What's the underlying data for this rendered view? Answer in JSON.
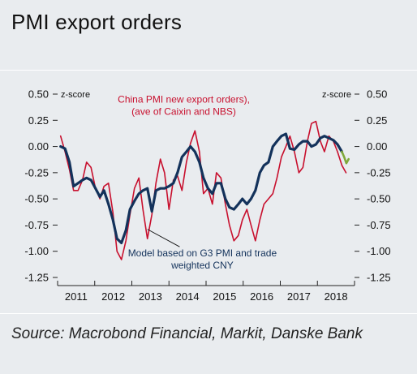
{
  "title": "PMI export orders",
  "source": "Source: Macrobond Financial, Markit, Danske Bank",
  "colors": {
    "red": "#c8102e",
    "navy": "#13325b",
    "green": "#7fa83a",
    "axis": "#222222"
  },
  "chart_data": {
    "type": "line",
    "y_left_label": "z-score",
    "y_right_label": "z-score",
    "ylim": [
      -1.25,
      0.5
    ],
    "yticks": [
      0.5,
      0.25,
      0.0,
      -0.25,
      -0.5,
      -0.75,
      -1.0,
      -1.25
    ],
    "ytick_labels": [
      "0.50",
      "0.25",
      "0.00",
      "-0.25",
      "-0.50",
      "-0.75",
      "-1.00",
      "-1.25"
    ],
    "xlim": [
      2010.5,
      2018.5
    ],
    "x_ticks": [
      2010.5,
      2011.5,
      2012.5,
      2013.5,
      2014.5,
      2015.5,
      2016.5,
      2017.5,
      2018.5
    ],
    "x_labels": [
      {
        "label": "2011",
        "x": 2011.0
      },
      {
        "label": "2012",
        "x": 2012.0
      },
      {
        "label": "2013",
        "x": 2013.0
      },
      {
        "label": "2014",
        "x": 2014.0
      },
      {
        "label": "2015",
        "x": 2015.0
      },
      {
        "label": "2016",
        "x": 2016.0
      },
      {
        "label": "2017",
        "x": 2017.0
      },
      {
        "label": "2018",
        "x": 2018.0
      }
    ],
    "grid": false,
    "series": [
      {
        "name": "China PMI new export orders), (ave of Caixin and NBS)",
        "color": "#c8102e",
        "x": [
          2010.58,
          2010.7,
          2010.82,
          2010.93,
          2011.05,
          2011.17,
          2011.28,
          2011.4,
          2011.52,
          2011.64,
          2011.75,
          2011.87,
          2011.99,
          2012.1,
          2012.22,
          2012.34,
          2012.45,
          2012.57,
          2012.69,
          2012.8,
          2012.92,
          2013.04,
          2013.15,
          2013.27,
          2013.38,
          2013.5,
          2013.62,
          2013.73,
          2013.85,
          2013.97,
          2014.08,
          2014.2,
          2014.32,
          2014.43,
          2014.55,
          2014.67,
          2014.78,
          2014.9,
          2015.02,
          2015.13,
          2015.25,
          2015.37,
          2015.48,
          2015.6,
          2015.71,
          2015.83,
          2015.95,
          2016.06,
          2016.18,
          2016.3,
          2016.41,
          2016.53,
          2016.65,
          2016.76,
          2016.88,
          2017.0,
          2017.11,
          2017.23,
          2017.34,
          2017.46,
          2017.58,
          2017.69,
          2017.81,
          2017.93,
          2018.04,
          2018.16,
          2018.27
        ],
        "y": [
          0.1,
          -0.05,
          -0.22,
          -0.42,
          -0.42,
          -0.32,
          -0.15,
          -0.2,
          -0.4,
          -0.5,
          -0.38,
          -0.35,
          -0.63,
          -1.0,
          -1.08,
          -0.9,
          -0.65,
          -0.4,
          -0.3,
          -0.6,
          -0.88,
          -0.65,
          -0.35,
          -0.12,
          -0.25,
          -0.6,
          -0.32,
          -0.28,
          -0.42,
          -0.15,
          0.03,
          0.15,
          -0.05,
          -0.45,
          -0.4,
          -0.55,
          -0.25,
          -0.3,
          -0.55,
          -0.75,
          -0.9,
          -0.85,
          -0.7,
          -0.6,
          -0.75,
          -0.9,
          -0.7,
          -0.55,
          -0.5,
          -0.45,
          -0.3,
          -0.1,
          0.0,
          0.1,
          -0.05,
          -0.25,
          -0.2,
          0.05,
          0.22,
          0.24,
          0.05,
          -0.05,
          0.1,
          0.05,
          -0.05,
          -0.18,
          -0.25
        ]
      },
      {
        "name": "Model based on G3 PMI and trade weighted CNY",
        "color": "#13325b",
        "x": [
          2010.58,
          2010.7,
          2010.82,
          2010.93,
          2011.05,
          2011.17,
          2011.28,
          2011.4,
          2011.52,
          2011.64,
          2011.75,
          2011.87,
          2011.99,
          2012.1,
          2012.22,
          2012.34,
          2012.45,
          2012.57,
          2012.69,
          2012.8,
          2012.92,
          2013.04,
          2013.15,
          2013.27,
          2013.38,
          2013.5,
          2013.62,
          2013.73,
          2013.85,
          2013.97,
          2014.08,
          2014.2,
          2014.32,
          2014.43,
          2014.55,
          2014.67,
          2014.78,
          2014.9,
          2015.02,
          2015.13,
          2015.25,
          2015.37,
          2015.48,
          2015.6,
          2015.71,
          2015.83,
          2015.95,
          2016.06,
          2016.18,
          2016.3,
          2016.41,
          2016.53,
          2016.65,
          2016.76,
          2016.88,
          2017.0,
          2017.11,
          2017.23,
          2017.34,
          2017.46,
          2017.58,
          2017.69,
          2017.81,
          2017.93,
          2018.04,
          2018.16
        ],
        "y": [
          0.0,
          -0.02,
          -0.15,
          -0.38,
          -0.35,
          -0.32,
          -0.3,
          -0.32,
          -0.4,
          -0.48,
          -0.42,
          -0.55,
          -0.7,
          -0.88,
          -0.92,
          -0.8,
          -0.6,
          -0.52,
          -0.45,
          -0.42,
          -0.4,
          -0.62,
          -0.42,
          -0.4,
          -0.4,
          -0.38,
          -0.35,
          -0.25,
          -0.1,
          -0.05,
          0.0,
          -0.05,
          -0.15,
          -0.3,
          -0.4,
          -0.45,
          -0.35,
          -0.35,
          -0.5,
          -0.58,
          -0.6,
          -0.55,
          -0.5,
          -0.55,
          -0.5,
          -0.42,
          -0.25,
          -0.18,
          -0.15,
          0.0,
          0.05,
          0.1,
          0.12,
          -0.02,
          -0.03,
          0.02,
          0.05,
          0.05,
          0.0,
          0.02,
          0.08,
          0.1,
          0.08,
          0.06,
          0.02,
          -0.05
        ]
      },
      {
        "name": "",
        "color": "#7fa83a",
        "x": [
          2018.16,
          2018.22,
          2018.28,
          2018.34
        ],
        "y": [
          -0.05,
          -0.1,
          -0.16,
          -0.12
        ]
      }
    ],
    "annotations": [
      {
        "text_lines": [
          "China PMI new export orders),",
          "(ave of Caixin and NBS)"
        ],
        "color": "#c8102e",
        "at_x": 2013.9,
        "at_y": 0.42
      },
      {
        "text_lines": [
          "Model based on G3 PMI and trade",
          "weighted CNY"
        ],
        "color": "#13325b",
        "at_x": 2014.4,
        "at_y": -1.05,
        "arrow_to_x": 2012.92,
        "arrow_to_y": -0.79
      }
    ]
  }
}
